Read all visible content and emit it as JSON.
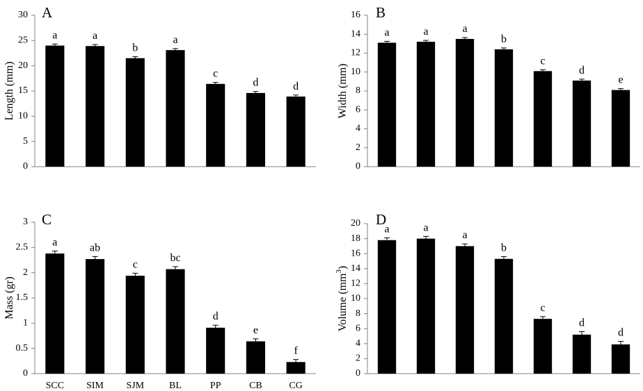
{
  "chart_data": [
    {
      "panel": "A",
      "type": "bar",
      "categories": [
        "SCC",
        "SIM",
        "SJM",
        "BL",
        "PP",
        "CB",
        "CG"
      ],
      "values": [
        24.0,
        23.9,
        21.5,
        23.1,
        16.4,
        14.6,
        13.9
      ],
      "errors": [
        0.3,
        0.3,
        0.3,
        0.3,
        0.3,
        0.3,
        0.3
      ],
      "letters": [
        "a",
        "a",
        "b",
        "a",
        "c",
        "d",
        "d"
      ],
      "ylabel": "Length (mm)",
      "ylim": [
        0,
        30
      ],
      "yticks": [
        "0",
        "5",
        "10",
        "15",
        "20",
        "25",
        "30"
      ],
      "grid": false
    },
    {
      "panel": "B",
      "type": "bar",
      "categories": [
        "SCC",
        "SIM",
        "SJM",
        "BL",
        "PP",
        "CB",
        "CG"
      ],
      "values": [
        13.1,
        13.2,
        13.5,
        12.4,
        10.1,
        9.1,
        8.1
      ],
      "errors": [
        0.15,
        0.15,
        0.15,
        0.15,
        0.15,
        0.15,
        0.15
      ],
      "letters": [
        "a",
        "a",
        "a",
        "b",
        "c",
        "d",
        "e"
      ],
      "ylabel": "Width (mm)",
      "ylim": [
        0,
        16
      ],
      "yticks": [
        "0",
        "2",
        "4",
        "6",
        "8",
        "10",
        "12",
        "14",
        "16"
      ],
      "grid": false
    },
    {
      "panel": "C",
      "type": "bar",
      "categories": [
        "SCC",
        "SIM",
        "SJM",
        "BL",
        "PP",
        "CB",
        "CG"
      ],
      "values": [
        2.38,
        2.27,
        1.94,
        2.07,
        0.91,
        0.64,
        0.23
      ],
      "errors": [
        0.05,
        0.05,
        0.05,
        0.05,
        0.05,
        0.05,
        0.05
      ],
      "letters": [
        "a",
        "ab",
        "c",
        "bc",
        "d",
        "e",
        "f"
      ],
      "ylabel": "Mass (gr)",
      "ylim": [
        0,
        3
      ],
      "yticks": [
        "0",
        "0.5",
        "1",
        "1.5",
        "2",
        "2.5",
        "3"
      ],
      "grid": false
    },
    {
      "panel": "D",
      "type": "bar",
      "categories": [
        "SCC",
        "SIM",
        "SJM",
        "BL",
        "PP",
        "CB",
        "CG"
      ],
      "values": [
        17.8,
        18.0,
        17.0,
        15.3,
        7.3,
        5.2,
        3.9
      ],
      "errors": [
        0.3,
        0.3,
        0.3,
        0.3,
        0.3,
        0.4,
        0.4
      ],
      "letters": [
        "a",
        "a",
        "a",
        "b",
        "c",
        "d",
        "d"
      ],
      "ylabel": "Volume (mm",
      "ylabel_sup": "3",
      "ylabel_end": ")",
      "ylim": [
        0,
        20
      ],
      "yticks": [
        "0",
        "2",
        "4",
        "6",
        "8",
        "10",
        "12",
        "14",
        "16",
        "18",
        "20"
      ],
      "grid": false
    }
  ],
  "style": {
    "bar_color": "#000000",
    "axis_color": "#808080",
    "text_color": "#000000"
  }
}
